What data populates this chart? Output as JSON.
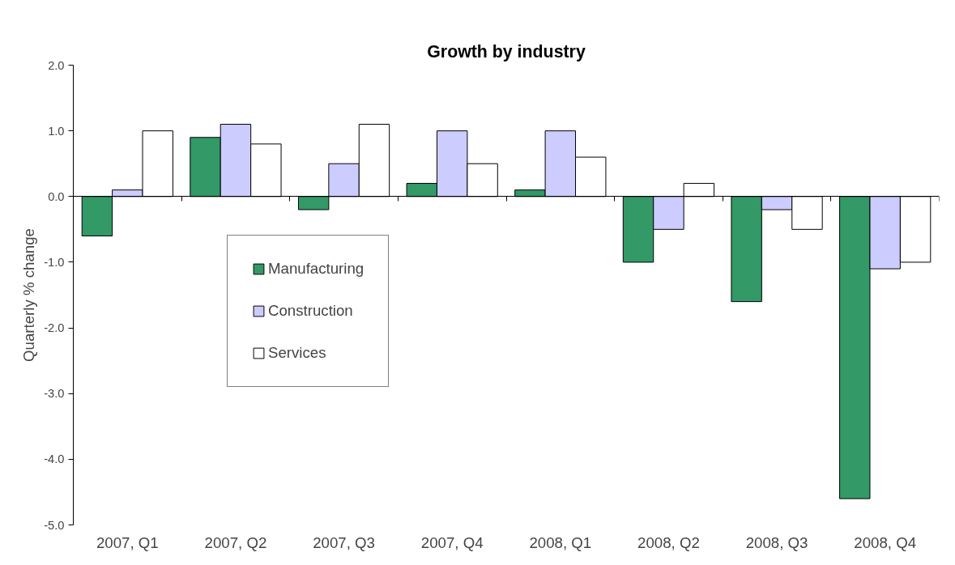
{
  "chart_data": {
    "type": "bar",
    "title": "Growth by industry",
    "ylabel": "Quarterly % change",
    "categories": [
      "2007, Q1",
      "2007, Q2",
      "2007, Q3",
      "2007, Q4",
      "2008, Q1",
      "2008, Q2",
      "2008, Q3",
      "2008, Q4"
    ],
    "series": [
      {
        "name": "Manufacturing",
        "color": "#339966",
        "values": [
          -0.6,
          0.9,
          -0.2,
          0.2,
          0.1,
          -1.0,
          -1.6,
          -4.6
        ]
      },
      {
        "name": "Construction",
        "color": "#ccccff",
        "values": [
          0.1,
          1.1,
          0.5,
          1.0,
          1.0,
          -0.5,
          -0.2,
          -1.1
        ]
      },
      {
        "name": "Services",
        "color": "#ffffff",
        "values": [
          1.0,
          0.8,
          1.1,
          0.5,
          0.6,
          0.2,
          -0.5,
          -1.0
        ]
      }
    ],
    "ylim": [
      -5,
      2
    ],
    "yticks": [
      {
        "value": -5,
        "label": "-5.0"
      },
      {
        "value": -4,
        "label": "-4.0"
      },
      {
        "value": -3,
        "label": "-3.0"
      },
      {
        "value": -2,
        "label": "-2.0"
      },
      {
        "value": -1,
        "label": "-1.0"
      },
      {
        "value": 0,
        "label": "0.0"
      },
      {
        "value": 1,
        "label": "1.0"
      },
      {
        "value": 2,
        "label": "2.0"
      }
    ],
    "legend": "left"
  }
}
